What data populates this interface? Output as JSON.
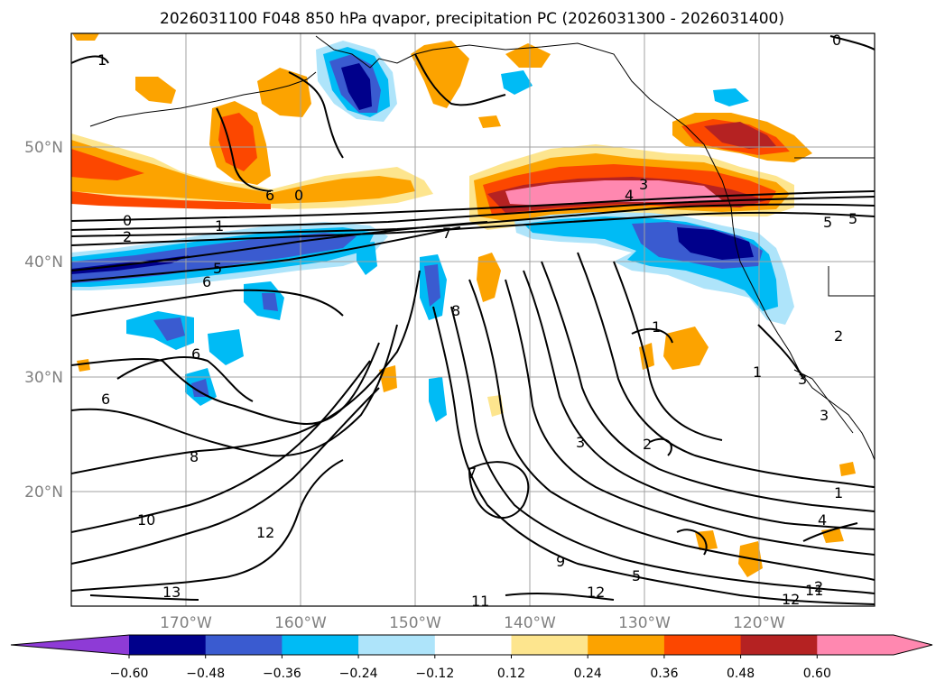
{
  "title": "2026031100 F048 850 hPa qvapor, precipitation PC (2026031300 - 2026031400)",
  "lat_labels": [
    "50°N",
    "40°N",
    "30°N",
    "20°N"
  ],
  "lon_labels": [
    "170°W",
    "160°W",
    "150°W",
    "140°W",
    "130°W",
    "120°W"
  ],
  "colorbar": {
    "ticks": [
      "−0.60",
      "−0.48",
      "−0.36",
      "−0.24",
      "−0.12",
      "0.12",
      "0.24",
      "0.36",
      "0.48",
      "0.60"
    ],
    "colors": [
      "#8e3bd6",
      "#00008b",
      "#3a5bd0",
      "#00bbf5",
      "#aee4fa",
      "#ffffff",
      "#fde58e",
      "#fca300",
      "#fc4700",
      "#b52222",
      "#ff88b0"
    ]
  },
  "contour_labels": [
    "0",
    "1",
    "2",
    "3",
    "4",
    "5",
    "6",
    "7",
    "8",
    "9",
    "10",
    "11",
    "12",
    "13",
    "0",
    "1",
    "2",
    "5",
    "6",
    "6",
    "6",
    "7",
    "8",
    "12",
    "1",
    "3",
    "2",
    "3",
    "3",
    "11",
    "12",
    "4",
    "1",
    "1",
    "0",
    "5",
    "5",
    "2"
  ]
}
